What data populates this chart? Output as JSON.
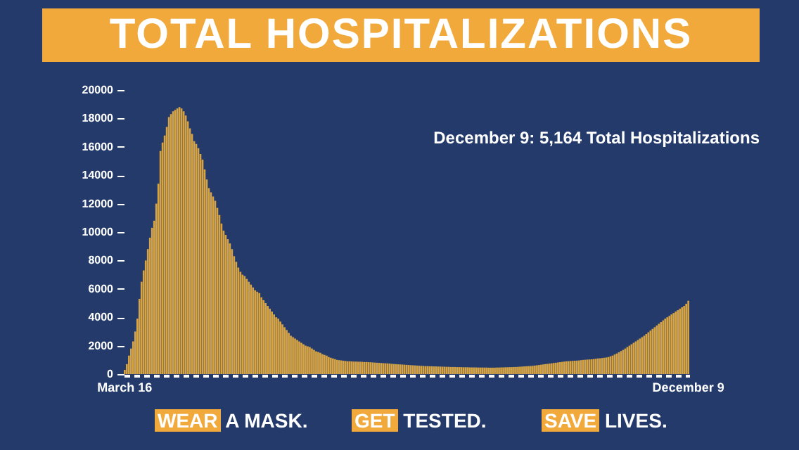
{
  "chart_data": {
    "type": "bar",
    "title": "TOTAL HOSPITALIZATIONS",
    "annotations": [
      "December 9: 5,164 Total Hospitalizations",
      "WEAR A MASK.",
      "GET TESTED.",
      "SAVE LIVES."
    ],
    "categories": [
      "March 16",
      null,
      null,
      null,
      null,
      null,
      null,
      null,
      null,
      null,
      null,
      null,
      null,
      null,
      null,
      null,
      null,
      null,
      null,
      null,
      null,
      null,
      null,
      null,
      null,
      null,
      null,
      null,
      null,
      null,
      null,
      null,
      null,
      null,
      null,
      null,
      null,
      null,
      null,
      null,
      null,
      null,
      null,
      null,
      null,
      null,
      null,
      null,
      null,
      null,
      null,
      null,
      null,
      null,
      null,
      null,
      null,
      null,
      null,
      null,
      null,
      null,
      null,
      null,
      null,
      null,
      null,
      null,
      null,
      null,
      null,
      null,
      null,
      null,
      null,
      null,
      null,
      null,
      null,
      null,
      null,
      null,
      null,
      null,
      null,
      null,
      null,
      null,
      null,
      null,
      null,
      null,
      null,
      null,
      null,
      null,
      null,
      null,
      null,
      null,
      null,
      null,
      null,
      null,
      null,
      null,
      null,
      null,
      null,
      null,
      null,
      null,
      null,
      null,
      null,
      null,
      null,
      null,
      null,
      null,
      null,
      null,
      null,
      null,
      null,
      null,
      null,
      null,
      null,
      null,
      null,
      null,
      null,
      null,
      null,
      null,
      null,
      null,
      null,
      null,
      null,
      null,
      null,
      null,
      null,
      null,
      null,
      null,
      null,
      null,
      null,
      null,
      null,
      null,
      null,
      null,
      null,
      null,
      null,
      null,
      null,
      null,
      null,
      null,
      null,
      null,
      null,
      null,
      null,
      null,
      null,
      null,
      null,
      null,
      null,
      null,
      null,
      null,
      null,
      null,
      null,
      null,
      null,
      null,
      null,
      null,
      null,
      null,
      null,
      null,
      null,
      null,
      null,
      null,
      null,
      null,
      null,
      null,
      null,
      null,
      null,
      null,
      null,
      null,
      null,
      null,
      null,
      null,
      null,
      null,
      null,
      null,
      null,
      null,
      null,
      null,
      null,
      null,
      null,
      null,
      null,
      null,
      null,
      null,
      null,
      null,
      null,
      null,
      null,
      null,
      null,
      null,
      null,
      null,
      null,
      null,
      null,
      null,
      null,
      null,
      null,
      null,
      null,
      null,
      null,
      null,
      null,
      null,
      null,
      null,
      null,
      null,
      null,
      null,
      null,
      null,
      null,
      null,
      null,
      null,
      null,
      null,
      null,
      null,
      null,
      null,
      null,
      null,
      "December 9"
    ],
    "values": [
      300,
      700,
      1300,
      1800,
      2300,
      3000,
      3900,
      5300,
      6500,
      7300,
      8000,
      8800,
      9600,
      10300,
      10800,
      12000,
      13400,
      15700,
      16300,
      16800,
      17400,
      18100,
      18300,
      18500,
      18600,
      18700,
      18800,
      18700,
      18500,
      18200,
      17800,
      17300,
      16900,
      16400,
      16200,
      15900,
      15500,
      15100,
      14400,
      13700,
      13100,
      12800,
      12500,
      12200,
      11700,
      11200,
      10600,
      10100,
      9800,
      9500,
      9200,
      8800,
      8300,
      7900,
      7500,
      7200,
      7000,
      6900,
      6700,
      6500,
      6300,
      6100,
      5900,
      5800,
      5700,
      5400,
      5200,
      5000,
      4800,
      4600,
      4400,
      4200,
      4000,
      3900,
      3700,
      3500,
      3300,
      3100,
      2900,
      2700,
      2600,
      2500,
      2400,
      2300,
      2200,
      2100,
      2000,
      1950,
      1900,
      1800,
      1700,
      1600,
      1550,
      1500,
      1400,
      1350,
      1300,
      1200,
      1150,
      1100,
      1050,
      1000,
      980,
      960,
      940,
      920,
      900,
      900,
      890,
      880,
      880,
      870,
      870,
      860,
      850,
      850,
      840,
      830,
      820,
      810,
      800,
      790,
      780,
      770,
      760,
      750,
      740,
      720,
      710,
      700,
      690,
      680,
      670,
      660,
      650,
      640,
      630,
      620,
      610,
      600,
      590,
      580,
      570,
      560,
      560,
      550,
      550,
      540,
      540,
      530,
      530,
      520,
      520,
      510,
      510,
      500,
      500,
      500,
      490,
      490,
      490,
      480,
      480,
      480,
      470,
      470,
      470,
      470,
      460,
      460,
      460,
      460,
      460,
      450,
      450,
      450,
      450,
      460,
      460,
      470,
      470,
      480,
      480,
      490,
      490,
      500,
      500,
      510,
      520,
      530,
      540,
      550,
      560,
      570,
      580,
      600,
      620,
      640,
      660,
      680,
      700,
      720,
      740,
      760,
      780,
      800,
      820,
      840,
      860,
      880,
      900,
      910,
      920,
      930,
      940,
      950,
      960,
      980,
      1000,
      1010,
      1020,
      1030,
      1040,
      1060,
      1080,
      1100,
      1110,
      1130,
      1150,
      1170,
      1200,
      1250,
      1300,
      1380,
      1450,
      1530,
      1620,
      1700,
      1800,
      1900,
      2000,
      2100,
      2200,
      2300,
      2400,
      2500,
      2600,
      2700,
      2820,
      2940,
      3060,
      3180,
      3300,
      3420,
      3540,
      3660,
      3780,
      3900,
      4000,
      4100,
      4200,
      4300,
      4400,
      4500,
      4600,
      4700,
      4800,
      4950,
      5164
    ],
    "color": "#d6a444",
    "ylim": [
      0,
      20000
    ],
    "yticks": [
      0,
      2000,
      4000,
      6000,
      8000,
      10000,
      12000,
      14000,
      16000,
      18000,
      20000
    ]
  }
}
